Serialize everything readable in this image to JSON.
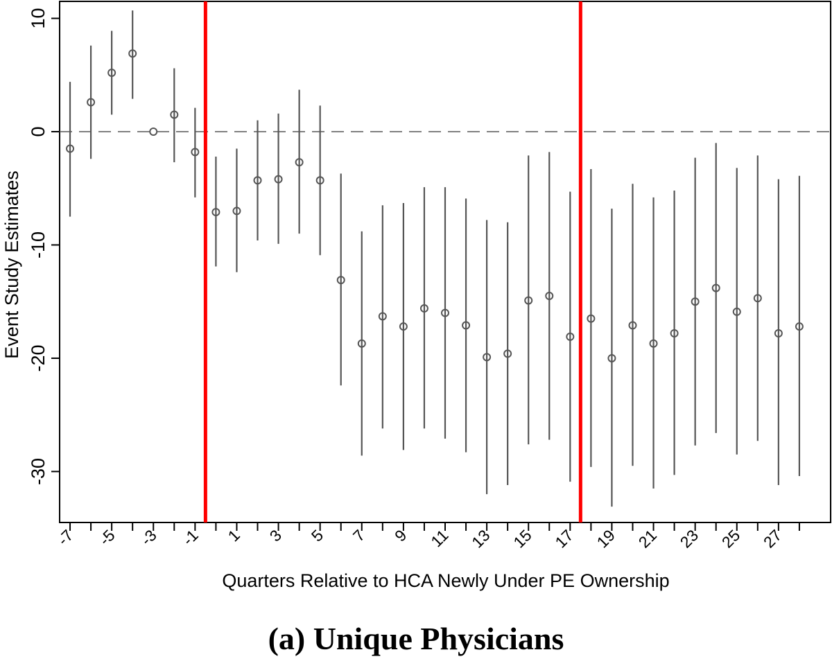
{
  "caption": "(a) Unique Physicians",
  "chart_data": {
    "type": "scatter",
    "subtype": "event-study coefficient plot with confidence intervals",
    "xlabel": "Quarters Relative to HCA Newly Under PE Ownership",
    "ylabel": "Event Study Estimates",
    "xlim": [
      -7.5,
      29.5
    ],
    "ylim": [
      -34.5,
      11.5
    ],
    "yticks": [
      10,
      0,
      -10,
      -20,
      -30
    ],
    "xticks": [
      -7,
      -5,
      -3,
      -1,
      1,
      3,
      5,
      7,
      9,
      11,
      13,
      15,
      17,
      19,
      21,
      23,
      25,
      27
    ],
    "reference_line": {
      "y": 0,
      "style": "dashed"
    },
    "vertical_markers": [
      {
        "x": -0.5,
        "color": "#ff0000"
      },
      {
        "x": 17.5,
        "color": "#ff0000"
      }
    ],
    "colors": {
      "points": "#555555",
      "markers": "#ff0000"
    },
    "x": [
      -7,
      -6,
      -5,
      -4,
      -3,
      -2,
      -1,
      0,
      1,
      2,
      3,
      4,
      5,
      6,
      7,
      8,
      9,
      10,
      11,
      12,
      13,
      14,
      15,
      16,
      17,
      18,
      19,
      20,
      21,
      22,
      23,
      24,
      25,
      26,
      27,
      28
    ],
    "estimate": [
      -1.5,
      2.6,
      5.2,
      6.9,
      0.0,
      1.5,
      -1.8,
      -7.1,
      -7.0,
      -4.3,
      -4.2,
      -2.7,
      -4.3,
      -13.1,
      -18.7,
      -16.3,
      -17.2,
      -15.6,
      -16.0,
      -17.1,
      -19.9,
      -19.6,
      -14.9,
      -14.5,
      -18.1,
      -16.5,
      -20.0,
      -17.1,
      -18.7,
      -17.8,
      -15.0,
      -13.8,
      -15.9,
      -14.7,
      -17.8,
      -17.2
    ],
    "ci_lower": [
      -7.5,
      -2.4,
      1.5,
      2.9,
      0.0,
      -2.7,
      -5.8,
      -11.9,
      -12.4,
      -9.6,
      -9.9,
      -9.0,
      -10.9,
      -22.4,
      -28.6,
      -26.2,
      -28.1,
      -26.2,
      -27.1,
      -28.3,
      -32.0,
      -31.2,
      -27.6,
      -27.2,
      -30.9,
      -29.6,
      -33.1,
      -29.5,
      -31.5,
      -30.3,
      -27.7,
      -26.6,
      -28.5,
      -27.3,
      -31.2,
      -30.4
    ],
    "ci_upper": [
      4.4,
      7.6,
      8.9,
      10.7,
      0.0,
      5.6,
      2.1,
      -2.2,
      -1.5,
      1.0,
      1.6,
      3.7,
      2.3,
      -3.7,
      -8.8,
      -6.5,
      -6.3,
      -4.9,
      -4.9,
      -5.9,
      -7.8,
      -8.0,
      -2.1,
      -1.8,
      -5.3,
      -3.3,
      -6.8,
      -4.6,
      -5.8,
      -5.2,
      -2.3,
      -1.0,
      -3.2,
      -2.1,
      -4.2,
      -3.9
    ]
  }
}
